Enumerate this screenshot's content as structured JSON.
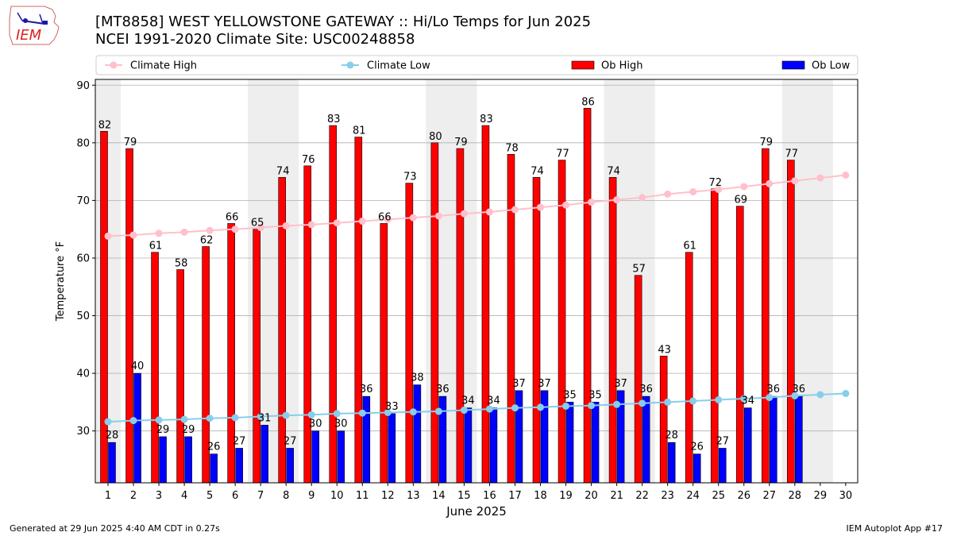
{
  "header": {
    "title_line1": "[MT8858] WEST YELLOWSTONE GATEWAY :: Hi/Lo Temps for Jun 2025",
    "title_line2": "NCEI 1991-2020 Climate Site: USC00248858",
    "logo_text": "IEM"
  },
  "footer": {
    "generated": "Generated at 29 Jun 2025 4:40 AM CDT in 0.27s",
    "app": "IEM Autoplot App #17"
  },
  "colors": {
    "ob_high": "#ff0000",
    "ob_low": "#0000ff",
    "climate_high": "#ffc0cb",
    "climate_low": "#87ceeb",
    "weekend_shade": "#eeeeee"
  },
  "chart_data": {
    "type": "bar",
    "xlabel": "June 2025",
    "ylabel": "Temperature °F",
    "ylim": [
      21,
      91
    ],
    "yticks": [
      30,
      40,
      50,
      60,
      70,
      80,
      90
    ],
    "grid": "horizontal",
    "legend_placement": "top",
    "categories": [
      "1",
      "2",
      "3",
      "4",
      "5",
      "6",
      "7",
      "8",
      "9",
      "10",
      "11",
      "12",
      "13",
      "14",
      "15",
      "16",
      "17",
      "18",
      "19",
      "20",
      "21",
      "22",
      "23",
      "24",
      "25",
      "26",
      "27",
      "28",
      "29",
      "30"
    ],
    "shaded_day_ranges": [
      [
        1,
        1
      ],
      [
        7,
        8
      ],
      [
        14,
        15
      ],
      [
        21,
        22
      ],
      [
        28,
        29
      ]
    ],
    "series": [
      {
        "name": "Ob High",
        "kind": "bar",
        "values": [
          82,
          79,
          61,
          58,
          62,
          66,
          65,
          74,
          76,
          83,
          81,
          66,
          73,
          80,
          79,
          83,
          78,
          74,
          77,
          86,
          74,
          57,
          43,
          61,
          72,
          69,
          79,
          77,
          null,
          null
        ]
      },
      {
        "name": "Ob Low",
        "kind": "bar",
        "values": [
          28,
          40,
          29,
          29,
          26,
          27,
          31,
          27,
          30,
          30,
          36,
          33,
          38,
          36,
          34,
          34,
          37,
          37,
          35,
          35,
          37,
          36,
          28,
          26,
          27,
          34,
          36,
          36,
          null,
          null
        ]
      },
      {
        "name": "Climate High",
        "kind": "line",
        "values": [
          63.8,
          64.0,
          64.3,
          64.5,
          64.8,
          65.0,
          65.3,
          65.6,
          65.8,
          66.1,
          66.4,
          66.7,
          67.0,
          67.3,
          67.7,
          68.0,
          68.4,
          68.8,
          69.2,
          69.7,
          70.1,
          70.5,
          71.1,
          71.5,
          71.9,
          72.4,
          72.9,
          73.4,
          73.9,
          74.4
        ]
      },
      {
        "name": "Climate Low",
        "kind": "line",
        "values": [
          31.6,
          31.8,
          31.9,
          32.0,
          32.2,
          32.3,
          32.5,
          32.7,
          32.8,
          33.0,
          33.1,
          33.2,
          33.3,
          33.4,
          33.6,
          33.8,
          34.0,
          34.1,
          34.3,
          34.4,
          34.6,
          34.8,
          35.0,
          35.2,
          35.4,
          35.6,
          35.8,
          36.1,
          36.3,
          36.5
        ]
      }
    ],
    "legend": [
      {
        "label": "Climate High",
        "kind": "line",
        "color": "#ffc0cb"
      },
      {
        "label": "Climate Low",
        "kind": "line",
        "color": "#87ceeb"
      },
      {
        "label": "Ob High",
        "kind": "bar",
        "color": "#ff0000"
      },
      {
        "label": "Ob Low",
        "kind": "bar",
        "color": "#0000ff"
      }
    ]
  }
}
